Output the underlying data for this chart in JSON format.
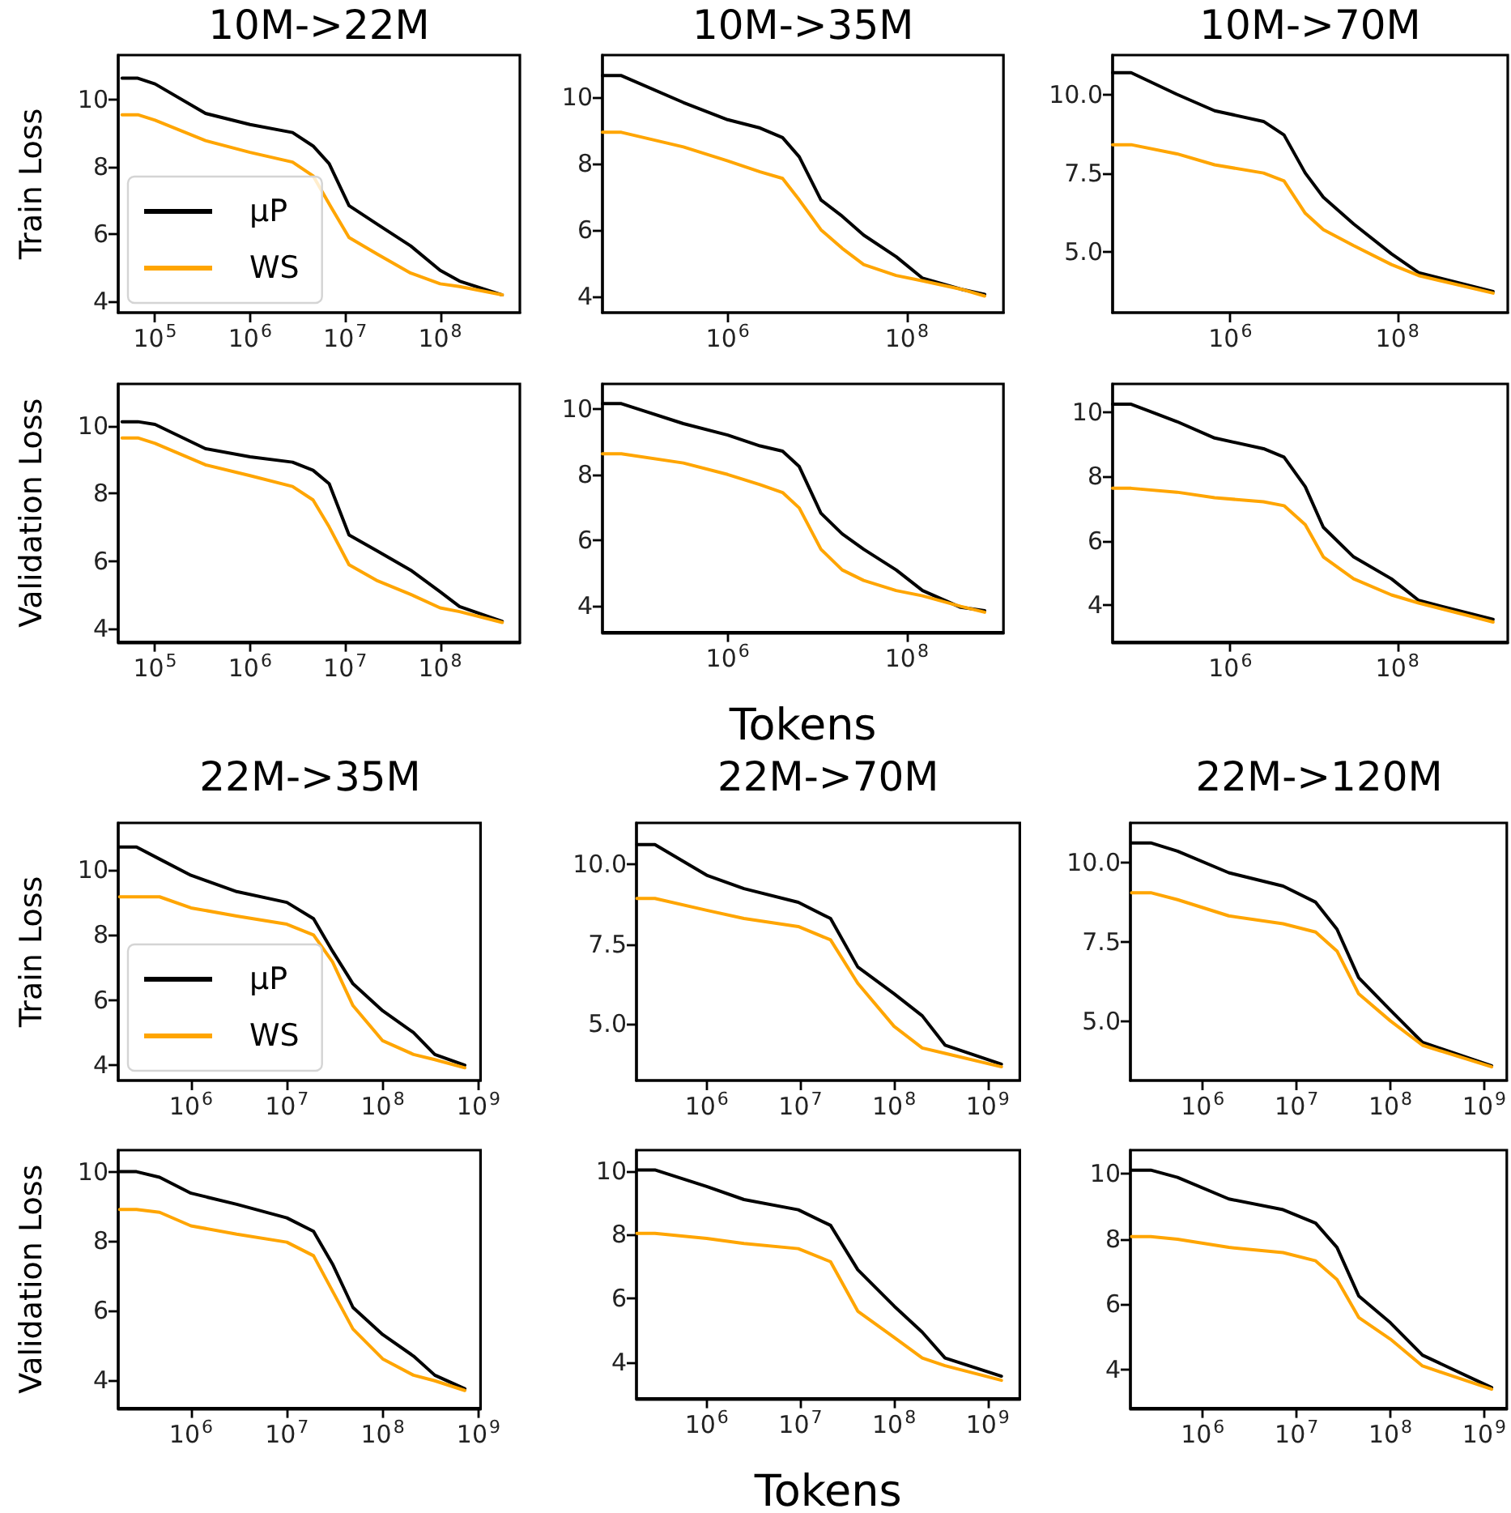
{
  "chart_data": [
    {
      "type": "line",
      "title": "10M->22M",
      "ylabel": "Train Loss",
      "log": "x",
      "legend": "bottom left",
      "xlim": [
        41000,
        690000000
      ],
      "ylim": [
        3.66,
        11.34
      ],
      "xticks": [
        {
          "value": 100000,
          "label": "10$^{5}$"
        },
        {
          "value": 1000000,
          "label": "10$^{6}$"
        },
        {
          "value": 10000000,
          "label": "10$^{7}$"
        },
        {
          "value": 100000000,
          "label": "10$^{8}$"
        }
      ],
      "yticks": [
        4,
        6,
        8,
        10
      ],
      "x": [
        45000,
        66000,
        100000,
        340000,
        1000000,
        2800000,
        4600000,
        6800000,
        11000000,
        22000000,
        49000000,
        100000000,
        160000000,
        450000000
      ],
      "series": [
        {
          "name": "μP",
          "color": "#000000",
          "values": [
            10.65,
            10.65,
            10.48,
            9.6,
            9.27,
            9.03,
            8.63,
            8.1,
            6.85,
            6.29,
            5.65,
            4.92,
            4.6,
            4.19
          ]
        },
        {
          "name": "WS",
          "color": "#ffa500",
          "values": [
            9.56,
            9.56,
            9.4,
            8.79,
            8.44,
            8.15,
            7.74,
            6.9,
            5.9,
            5.4,
            4.84,
            4.52,
            4.44,
            4.19
          ]
        }
      ]
    },
    {
      "type": "line",
      "title": "10M->35M",
      "log": "x",
      "xlim": [
        40000,
        1200000000
      ],
      "ylim": [
        3.5,
        11.27
      ],
      "xticks": [
        {
          "value": 1000000,
          "label": "10$^{6}$"
        },
        {
          "value": 100000000,
          "label": "10$^{8}$"
        }
      ],
      "yticks": [
        4,
        6,
        8,
        10
      ],
      "x": [
        40000,
        65000,
        320000,
        1000000,
        2300000,
        4100000,
        6300000,
        11000000,
        19000000,
        33000000,
        76000000,
        150000000,
        400000000,
        740000000
      ],
      "series": [
        {
          "color": "#000000",
          "values": [
            10.65,
            10.65,
            9.84,
            9.32,
            9.07,
            8.78,
            8.2,
            6.9,
            6.41,
            5.84,
            5.19,
            4.54,
            4.21,
            4.05
          ]
        },
        {
          "color": "#ffa500",
          "values": [
            8.94,
            8.94,
            8.5,
            8.08,
            7.75,
            7.55,
            6.9,
            6.0,
            5.44,
            4.95,
            4.62,
            4.46,
            4.21,
            4.0
          ]
        }
      ]
    },
    {
      "type": "line",
      "title": "10M->70M",
      "log": "x",
      "xlim": [
        39000,
        2100000000
      ],
      "ylim": [
        3.06,
        11.25
      ],
      "xticks": [
        {
          "value": 1000000,
          "label": "10$^{6}$"
        },
        {
          "value": 100000000,
          "label": "10$^{8}$"
        }
      ],
      "yticks": [
        {
          "value": 5,
          "label": "5.0"
        },
        {
          "value": 7.5,
          "label": "7.5"
        },
        {
          "value": 10,
          "label": "10.0"
        }
      ],
      "x": [
        39000,
        65000,
        230000,
        650000,
        2500000,
        4400000,
        7900000,
        13000000,
        30000000,
        85000000,
        180000000,
        1400000000
      ],
      "series": [
        {
          "color": "#000000",
          "values": [
            10.69,
            10.69,
            10.0,
            9.48,
            9.14,
            8.71,
            7.5,
            6.73,
            5.88,
            4.93,
            4.33,
            3.73
          ]
        },
        {
          "color": "#ffa500",
          "values": [
            8.4,
            8.4,
            8.11,
            7.76,
            7.5,
            7.25,
            6.22,
            5.7,
            5.19,
            4.59,
            4.24,
            3.68
          ]
        }
      ]
    },
    {
      "type": "line",
      "ylabel": "Validation Loss",
      "log": "x",
      "xlim": [
        41000,
        690000000
      ],
      "ylim": [
        3.6,
        11.25
      ],
      "xticks": [
        {
          "value": 100000,
          "label": "10$^{5}$"
        },
        {
          "value": 1000000,
          "label": "10$^{6}$"
        },
        {
          "value": 10000000,
          "label": "10$^{7}$"
        },
        {
          "value": 100000000,
          "label": "10$^{8}$"
        }
      ],
      "yticks": [
        4,
        6,
        8,
        10
      ],
      "x": [
        45000,
        66000,
        100000,
        340000,
        1000000,
        2800000,
        4600000,
        6800000,
        11000000,
        22000000,
        49000000,
        100000000,
        160000000,
        450000000
      ],
      "series": [
        {
          "color": "#000000",
          "values": [
            10.13,
            10.13,
            10.05,
            9.33,
            9.09,
            8.93,
            8.69,
            8.29,
            6.77,
            6.29,
            5.73,
            5.09,
            4.65,
            4.21
          ]
        },
        {
          "color": "#ffa500",
          "values": [
            9.65,
            9.65,
            9.49,
            8.85,
            8.53,
            8.21,
            7.81,
            7.01,
            5.89,
            5.41,
            5.01,
            4.61,
            4.5,
            4.18
          ]
        }
      ]
    },
    {
      "type": "line",
      "xlabel": "Tokens",
      "log": "x",
      "xlim": [
        40000,
        1200000000
      ],
      "ylim": [
        3.19,
        10.76
      ],
      "xticks": [
        {
          "value": 1000000,
          "label": "10$^{6}$"
        },
        {
          "value": 100000000,
          "label": "10$^{8}$"
        }
      ],
      "yticks": [
        4,
        6,
        8,
        10
      ],
      "x": [
        40000,
        65000,
        320000,
        1000000,
        2300000,
        4100000,
        6300000,
        11000000,
        19000000,
        33000000,
        76000000,
        150000000,
        400000000,
        740000000
      ],
      "series": [
        {
          "color": "#000000",
          "values": [
            10.16,
            10.16,
            9.55,
            9.2,
            8.87,
            8.71,
            8.24,
            6.82,
            6.19,
            5.72,
            5.09,
            4.46,
            3.95,
            3.85
          ]
        },
        {
          "color": "#ffa500",
          "values": [
            8.63,
            8.63,
            8.35,
            8.0,
            7.69,
            7.45,
            6.98,
            5.72,
            5.09,
            4.77,
            4.46,
            4.3,
            3.98,
            3.8
          ]
        }
      ]
    },
    {
      "type": "line",
      "log": "x",
      "xlim": [
        39000,
        2100000000
      ],
      "ylim": [
        2.86,
        10.87
      ],
      "xticks": [
        {
          "value": 1000000,
          "label": "10$^{6}$"
        },
        {
          "value": 100000000,
          "label": "10$^{8}$"
        }
      ],
      "yticks": [
        4,
        6,
        8,
        10
      ],
      "x": [
        39000,
        65000,
        230000,
        650000,
        2500000,
        4400000,
        7900000,
        13000000,
        30000000,
        85000000,
        180000000,
        1400000000
      ],
      "series": [
        {
          "color": "#000000",
          "values": [
            10.24,
            10.24,
            9.7,
            9.19,
            8.86,
            8.6,
            7.68,
            6.42,
            5.5,
            4.82,
            4.15,
            3.56
          ]
        },
        {
          "color": "#ffa500",
          "values": [
            7.63,
            7.63,
            7.51,
            7.34,
            7.21,
            7.09,
            6.5,
            5.5,
            4.82,
            4.32,
            4.07,
            3.48
          ]
        }
      ]
    },
    {
      "type": "line",
      "title": "22M->35M",
      "ylabel": "Train Loss",
      "log": "x",
      "legend": "bottom left",
      "xlim": [
        174000,
        1050000000
      ],
      "ylim": [
        3.53,
        11.44
      ],
      "xticks": [
        {
          "value": 1000000,
          "label": "10$^{6}$"
        },
        {
          "value": 10000000,
          "label": "10$^{7}$"
        },
        {
          "value": 100000000,
          "label": "10$^{8}$"
        },
        {
          "value": 1000000000,
          "label": "10$^{9}$"
        }
      ],
      "yticks": [
        4,
        6,
        8,
        10
      ],
      "x": [
        180000,
        270000,
        470000,
        1000000,
        3000000,
        10000000,
        19000000,
        30000000,
        49000000,
        100000000,
        210000000,
        350000000,
        720000000
      ],
      "series": [
        {
          "name": "μP",
          "color": "#000000",
          "values": [
            10.7,
            10.7,
            10.33,
            9.83,
            9.33,
            9.0,
            8.5,
            7.5,
            6.5,
            5.67,
            5.0,
            4.33,
            4.0
          ]
        },
        {
          "name": "WS",
          "color": "#ffa500",
          "values": [
            9.17,
            9.17,
            9.17,
            8.83,
            8.58,
            8.33,
            8.0,
            7.17,
            5.83,
            4.75,
            4.33,
            4.17,
            3.92
          ]
        }
      ]
    },
    {
      "type": "line",
      "title": "22M->70M",
      "log": "x",
      "xlim": [
        178000,
        2200000000
      ],
      "ylim": [
        3.22,
        11.3
      ],
      "xticks": [
        {
          "value": 1000000,
          "label": "10$^{6}$"
        },
        {
          "value": 10000000,
          "label": "10$^{7}$"
        },
        {
          "value": 100000000,
          "label": "10$^{8}$"
        },
        {
          "value": 1000000000,
          "label": "10$^{9}$"
        }
      ],
      "yticks": [
        {
          "value": 5,
          "label": "5.0"
        },
        {
          "value": 7.5,
          "label": "7.5"
        },
        {
          "value": 10,
          "label": "10.0"
        }
      ],
      "x": [
        180000,
        280000,
        1000000,
        2500000,
        9500000,
        21000000,
        41000000,
        100000000,
        200000000,
        350000000,
        1400000000
      ],
      "series": [
        {
          "color": "#000000",
          "values": [
            10.62,
            10.62,
            9.66,
            9.24,
            8.81,
            8.3,
            6.78,
            5.94,
            5.25,
            4.33,
            3.73
          ]
        },
        {
          "color": "#ffa500",
          "values": [
            8.93,
            8.93,
            8.56,
            8.3,
            8.05,
            7.63,
            6.27,
            4.92,
            4.24,
            4.07,
            3.65
          ]
        }
      ]
    },
    {
      "type": "line",
      "title": "22M->120M",
      "log": "x",
      "xlim": [
        170000,
        1740000000
      ],
      "ylim": [
        3.14,
        11.26
      ],
      "xticks": [
        {
          "value": 1000000,
          "label": "10$^{6}$"
        },
        {
          "value": 10000000,
          "label": "10$^{7}$"
        },
        {
          "value": 100000000,
          "label": "10$^{8}$"
        },
        {
          "value": 1000000000,
          "label": "10$^{9}$"
        }
      ],
      "yticks": [
        {
          "value": 5,
          "label": "5.0"
        },
        {
          "value": 7.5,
          "label": "7.5"
        },
        {
          "value": 10,
          "label": "10.0"
        }
      ],
      "x": [
        175000,
        280000,
        540000,
        1900000,
        7200000,
        16000000,
        27000000,
        46000000,
        100000000,
        220000000,
        1200000000
      ],
      "series": [
        {
          "color": "#000000",
          "values": [
            10.63,
            10.63,
            10.37,
            9.69,
            9.27,
            8.76,
            7.91,
            6.38,
            5.36,
            4.34,
            3.6
          ]
        },
        {
          "color": "#ffa500",
          "values": [
            9.06,
            9.06,
            8.84,
            8.33,
            8.08,
            7.82,
            7.22,
            5.87,
            5.02,
            4.25,
            3.57
          ]
        }
      ]
    },
    {
      "type": "line",
      "ylabel": "Validation Loss",
      "log": "x",
      "xlim": [
        174000,
        1050000000
      ],
      "ylim": [
        3.19,
        10.62
      ],
      "xticks": [
        {
          "value": 1000000,
          "label": "10$^{6}$"
        },
        {
          "value": 10000000,
          "label": "10$^{7}$"
        },
        {
          "value": 100000000,
          "label": "10$^{8}$"
        },
        {
          "value": 1000000000,
          "label": "10$^{9}$"
        }
      ],
      "yticks": [
        4,
        6,
        8,
        10
      ],
      "x": [
        180000,
        270000,
        470000,
        1000000,
        3000000,
        10000000,
        19000000,
        30000000,
        49000000,
        100000000,
        210000000,
        350000000,
        720000000
      ],
      "series": [
        {
          "color": "#000000",
          "values": [
            10.0,
            10.0,
            9.84,
            9.38,
            9.06,
            8.67,
            8.28,
            7.34,
            6.09,
            5.31,
            4.69,
            4.14,
            3.75
          ]
        },
        {
          "color": "#ffa500",
          "values": [
            8.91,
            8.91,
            8.83,
            8.44,
            8.2,
            7.97,
            7.58,
            6.56,
            5.47,
            4.61,
            4.14,
            3.98,
            3.7
          ]
        }
      ]
    },
    {
      "type": "line",
      "xlabel": "Tokens",
      "log": "x",
      "xlim": [
        178000,
        2200000000
      ],
      "ylim": [
        2.86,
        10.65
      ],
      "xticks": [
        {
          "value": 1000000,
          "label": "10$^{6}$"
        },
        {
          "value": 10000000,
          "label": "10$^{7}$"
        },
        {
          "value": 100000000,
          "label": "10$^{8}$"
        },
        {
          "value": 1000000000,
          "label": "10$^{9}$"
        }
      ],
      "yticks": [
        4,
        6,
        8,
        10
      ],
      "x": [
        180000,
        280000,
        1000000,
        2500000,
        9500000,
        21000000,
        41000000,
        100000000,
        200000000,
        350000000,
        1400000000
      ],
      "series": [
        {
          "color": "#000000",
          "values": [
            10.03,
            10.03,
            9.51,
            9.1,
            8.78,
            8.29,
            6.9,
            5.76,
            4.94,
            4.13,
            3.56
          ]
        },
        {
          "color": "#ffa500",
          "values": [
            8.04,
            8.04,
            7.88,
            7.72,
            7.56,
            7.15,
            5.6,
            4.78,
            4.13,
            3.89,
            3.43
          ]
        }
      ]
    },
    {
      "type": "line",
      "log": "x",
      "xlim": [
        170000,
        1740000000
      ],
      "ylim": [
        2.83,
        10.71
      ],
      "xticks": [
        {
          "value": 1000000,
          "label": "10$^{6}$"
        },
        {
          "value": 10000000,
          "label": "10$^{7}$"
        },
        {
          "value": 100000000,
          "label": "10$^{8}$"
        },
        {
          "value": 1000000000,
          "label": "10$^{9}$"
        }
      ],
      "yticks": [
        4,
        6,
        8,
        10
      ],
      "x": [
        175000,
        280000,
        540000,
        1900000,
        7200000,
        16000000,
        27000000,
        46000000,
        100000000,
        220000000,
        1200000000
      ],
      "series": [
        {
          "color": "#000000",
          "values": [
            10.1,
            10.1,
            9.88,
            9.22,
            8.89,
            8.48,
            7.74,
            6.26,
            5.44,
            4.45,
            3.46
          ]
        },
        {
          "color": "#ffa500",
          "values": [
            8.07,
            8.07,
            7.99,
            7.74,
            7.58,
            7.33,
            6.76,
            5.6,
            4.94,
            4.12,
            3.41
          ]
        }
      ]
    }
  ]
}
